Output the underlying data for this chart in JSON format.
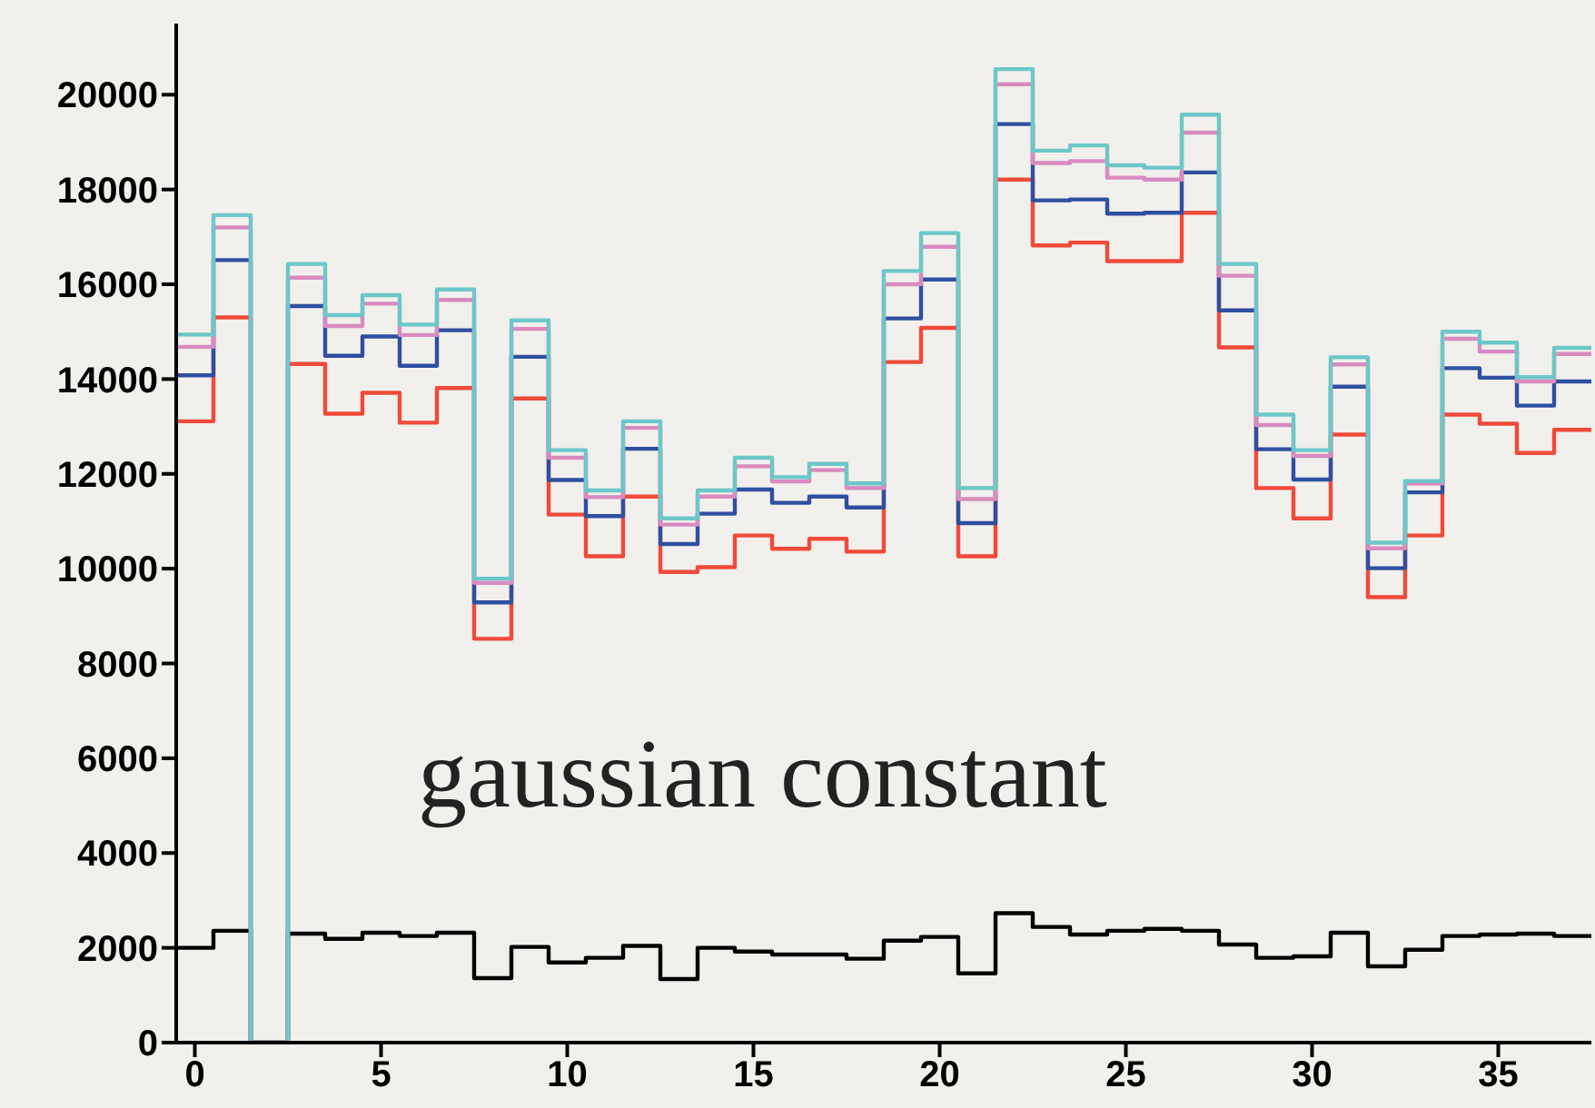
{
  "chart_data": {
    "type": "histogram",
    "bins": [
      -0.5,
      0.5,
      1.5,
      2.5,
      3.5,
      4.5,
      5.5,
      6.5,
      7.5,
      8.5,
      9.5,
      10.5,
      11.5,
      12.5,
      13.5,
      14.5,
      15.5,
      16.5,
      17.5,
      18.5,
      19.5,
      20.5,
      21.5,
      22.5,
      23.5,
      24.5,
      25.5,
      26.5,
      27.5,
      28.5,
      29.5,
      30.5,
      31.5,
      32.5,
      33.5,
      34.5,
      35.5,
      36.5,
      37.5
    ],
    "series": [
      {
        "color": "#000000",
        "values": [
          2000,
          2360,
          0,
          2300,
          2190,
          2320,
          2250,
          2320,
          1360,
          2020,
          1690,
          1790,
          2040,
          1340,
          2000,
          1920,
          1860,
          1860,
          1770,
          2150,
          2230,
          1460,
          2730,
          2440,
          2280,
          2360,
          2400,
          2360,
          2070,
          1790,
          1820,
          2320,
          1610,
          1960,
          2250,
          2280,
          2300,
          2250
        ]
      },
      {
        "color": "#f04a3a",
        "values": [
          13110,
          15300,
          0,
          14320,
          13270,
          13710,
          13080,
          13810,
          8520,
          13590,
          11140,
          10260,
          11520,
          9930,
          10030,
          10700,
          10420,
          10630,
          10360,
          14360,
          15080,
          10260,
          18210,
          16820,
          16880,
          16490,
          16490,
          17510,
          14670,
          11700,
          11060,
          12830,
          9400,
          10700,
          13250,
          13060,
          12440,
          12930
        ]
      },
      {
        "color": "#2f4fa0",
        "values": [
          14080,
          16510,
          0,
          15540,
          14490,
          14900,
          14280,
          15030,
          9290,
          14470,
          11870,
          11110,
          12530,
          10520,
          11160,
          11670,
          11390,
          11520,
          11290,
          15280,
          16100,
          10960,
          19380,
          17770,
          17790,
          17490,
          17510,
          18360,
          15450,
          12520,
          11880,
          13840,
          10010,
          11610,
          14230,
          14030,
          13440,
          13950
        ]
      },
      {
        "color": "#d98bbf",
        "values": [
          14680,
          17200,
          0,
          16140,
          15120,
          15590,
          14930,
          15670,
          9700,
          15060,
          12340,
          11510,
          12970,
          10930,
          11520,
          12160,
          11840,
          12080,
          11700,
          16000,
          16790,
          11470,
          20220,
          18560,
          18600,
          18250,
          18210,
          19200,
          16180,
          13030,
          12380,
          14310,
          10430,
          11800,
          14850,
          14580,
          13950,
          14530
        ]
      },
      {
        "color": "#6cc8c8",
        "values": [
          14940,
          17460,
          0,
          16430,
          15350,
          15770,
          15150,
          15890,
          9790,
          15240,
          12500,
          11650,
          13110,
          11060,
          11650,
          12340,
          11930,
          12210,
          11800,
          16280,
          17080,
          11700,
          20540,
          18820,
          18930,
          18510,
          18460,
          19580,
          16430,
          13250,
          12500,
          14460,
          10550,
          11850,
          15000,
          14770,
          14040,
          14660
        ]
      }
    ],
    "xlim": [
      -0.5,
      37.5
    ],
    "xticks": [
      0,
      5,
      10,
      15,
      20,
      25,
      30,
      35
    ],
    "ylim": [
      0,
      21500
    ],
    "yticks": [
      0,
      2000,
      4000,
      6000,
      8000,
      10000,
      12000,
      14000,
      16000,
      18000,
      20000
    ],
    "annotations": [
      "gaussian constant"
    ]
  }
}
